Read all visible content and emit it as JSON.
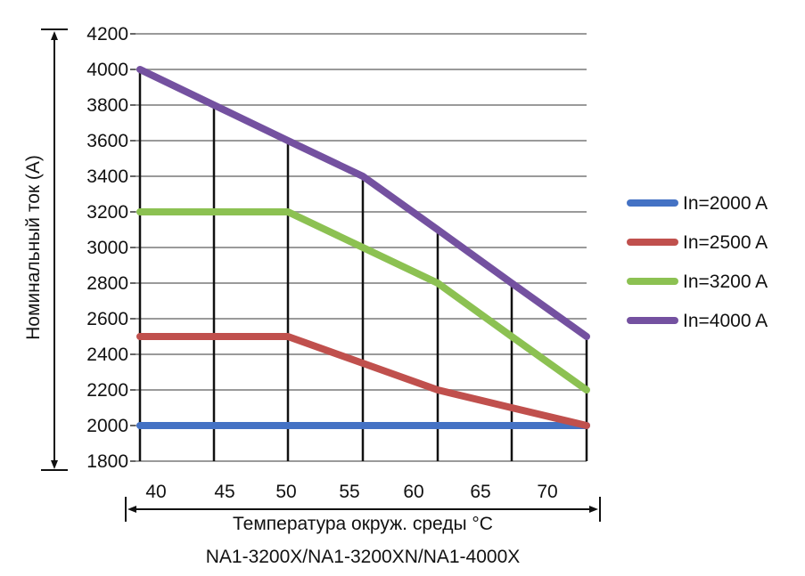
{
  "chart_data": {
    "type": "line",
    "x": [
      40,
      45,
      50,
      55,
      60,
      65,
      70
    ],
    "x_tick_labels": [
      "40",
      "45",
      "50",
      "55",
      "60",
      "65",
      "70"
    ],
    "y_tick_labels": [
      "1800",
      "2000",
      "2200",
      "2400",
      "2600",
      "2800",
      "3000",
      "3200",
      "3400",
      "3600",
      "3800",
      "4000",
      "4200"
    ],
    "ylim": [
      1800,
      4200
    ],
    "xlabel": "Температура окруж. среды °C",
    "ylabel": "Номинальный ток (А)",
    "caption": "NA1-3200X/NA1-3200XN/NA1-4000X",
    "grid": "horizontal",
    "legend_position": "right",
    "series": [
      {
        "name": "In=2000 A",
        "color": "#4472c4",
        "values": [
          2000,
          2000,
          2000,
          2000,
          2000,
          2000,
          2000
        ]
      },
      {
        "name": "In=2500 A",
        "color": "#c0504d",
        "values": [
          2500,
          2500,
          2500,
          2350,
          2200,
          2100,
          2000
        ]
      },
      {
        "name": "In=3200 A",
        "color": "#8cc152",
        "values": [
          3200,
          3200,
          3200,
          3000,
          2800,
          2500,
          2200
        ]
      },
      {
        "name": "In=4000 A",
        "color": "#7451a0",
        "values": [
          4000,
          3800,
          3600,
          3400,
          3100,
          2800,
          2500
        ]
      }
    ]
  }
}
